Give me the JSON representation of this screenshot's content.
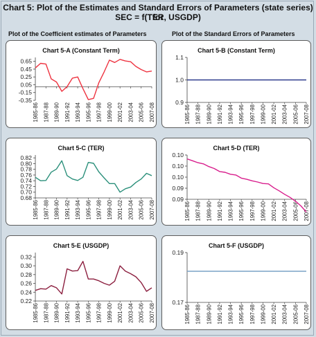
{
  "header": {
    "title_line1": "Chart 5: Plot of the Estimates and Standard Errors of Parameters (state series) for",
    "title_line2": "SEC = f(TER, USGDP)"
  },
  "columns": {
    "left": "Plot of the Coefficient estimates of Parameters",
    "right": "Plot of the Standard Errors of Parameters"
  },
  "chart_data": [
    {
      "id": "5-A",
      "type": "line",
      "title": "Chart 5-A (Constant Term)",
      "color": "#ee3340",
      "x_ticks": [
        "1985-86",
        "1987-88",
        "1989-90",
        "1991-92",
        "1993-94",
        "1995-96",
        "1997-98",
        "1999-00",
        "2001-02",
        "2003-04",
        "2005-06",
        "2007-08"
      ],
      "y_ticks": [
        "0.65",
        "0.45",
        "0.25",
        "0.05",
        "-0.15",
        "-0.35"
      ],
      "ylim": [
        -0.35,
        0.75
      ],
      "values": [
        0.48,
        0.6,
        0.58,
        0.2,
        0.12,
        -0.12,
        0.0,
        0.22,
        0.25,
        -0.05,
        -0.33,
        -0.3,
        0.1,
        0.38,
        0.68,
        0.62,
        0.7,
        0.66,
        0.64,
        0.52,
        0.44,
        0.38,
        0.4
      ]
    },
    {
      "id": "5-B",
      "type": "line",
      "title": "Chart 5-B (Constant Term)",
      "color": "#2d3a8c",
      "x_ticks": [
        "1985-86",
        "1987-88",
        "1989-90",
        "1991-92",
        "1993-94",
        "1995-96",
        "1997-98",
        "1999-00",
        "2001-02",
        "2003-04",
        "2005-06",
        "2007-08"
      ],
      "y_ticks": [
        "1.1",
        "1.0",
        "0.9"
      ],
      "ylim": [
        0.9,
        1.1
      ],
      "values": [
        1.0,
        1.0,
        1.0,
        1.0,
        1.0,
        1.0,
        1.0,
        1.0,
        1.0,
        1.0,
        1.0,
        1.0,
        1.0,
        1.0,
        1.0,
        1.0,
        1.0,
        1.0,
        1.0,
        1.0,
        1.0,
        1.0,
        1.0
      ]
    },
    {
      "id": "5-C",
      "type": "line",
      "title": "Chart 5-C (TER)",
      "color": "#2a8f7a",
      "x_ticks": [
        "1985-86",
        "1987-88",
        "1989-90",
        "1991-92",
        "1993-94",
        "1995-96",
        "1997-98",
        "1999-00",
        "2001-02",
        "2003-04",
        "2005-06",
        "2007-08"
      ],
      "y_ticks": [
        "0.82",
        "0.80",
        "0.78",
        "0.76",
        "0.74",
        "0.72",
        "0.70",
        "0.68"
      ],
      "ylim": [
        0.68,
        0.83
      ],
      "values": [
        0.752,
        0.74,
        0.741,
        0.77,
        0.781,
        0.81,
        0.758,
        0.746,
        0.741,
        0.752,
        0.804,
        0.801,
        0.771,
        0.75,
        0.73,
        0.73,
        0.7,
        0.712,
        0.718,
        0.734,
        0.746,
        0.766,
        0.758
      ]
    },
    {
      "id": "5-D",
      "type": "line",
      "title": "Chart 5-D (TER)",
      "color": "#d81d8c",
      "x_ticks": [
        "1985-86",
        "1987-88",
        "1989-90",
        "1991-92",
        "1993-94",
        "1995-96",
        "1997-98",
        "1999-00",
        "2001-02",
        "2003-04",
        "2005-06",
        "2007-08"
      ],
      "y_ticks": [
        "0.10",
        "0.10",
        "0.10",
        "0.09",
        "0.09"
      ],
      "ylim": [
        0.0895,
        0.101
      ],
      "values": [
        0.1,
        0.0995,
        0.099,
        0.0987,
        0.098,
        0.0975,
        0.0967,
        0.0965,
        0.096,
        0.0958,
        0.095,
        0.0947,
        0.0943,
        0.094,
        0.0936,
        0.0935,
        0.0925,
        0.0917,
        0.0908,
        0.09,
        0.089,
        0.0878,
        0.0862
      ]
    },
    {
      "id": "5-E",
      "type": "line",
      "title": "Chart 5-E (USGDP)",
      "color": "#8c1f3f",
      "x_ticks": [
        "1985-86",
        "1987-88",
        "1989-90",
        "1991-92",
        "1993-94",
        "1995-96",
        "1997-98",
        "1999-00",
        "2001-02",
        "2003-04",
        "2005-06",
        "2007-08"
      ],
      "y_ticks": [
        "0.32",
        "0.30",
        "0.28",
        "0.26",
        "0.24",
        "0.22"
      ],
      "ylim": [
        0.22,
        0.33
      ],
      "values": [
        0.244,
        0.248,
        0.247,
        0.255,
        0.25,
        0.236,
        0.293,
        0.288,
        0.289,
        0.31,
        0.27,
        0.27,
        0.266,
        0.26,
        0.256,
        0.265,
        0.3,
        0.288,
        0.282,
        0.275,
        0.262,
        0.242,
        0.25
      ]
    },
    {
      "id": "5-F",
      "type": "line",
      "title": "Chart 5-F (USGDP)",
      "color": "#7aa2c6",
      "x_ticks": [
        "1985-86",
        "1987-88",
        "1989-90",
        "1991-92",
        "1993-94",
        "1995-96",
        "1997-98",
        "1999-00",
        "2001-02",
        "2003-04",
        "2005-06",
        "2007-08"
      ],
      "y_ticks": [
        "0.19",
        "0.17"
      ],
      "ylim": [
        0.17,
        0.19
      ],
      "values": [
        0.1825,
        0.1825,
        0.1825,
        0.1825,
        0.1825,
        0.1825,
        0.1825,
        0.1825,
        0.1825,
        0.1825,
        0.1825,
        0.1825,
        0.1825,
        0.1825,
        0.1825,
        0.1825,
        0.1825,
        0.1825,
        0.1825,
        0.1825,
        0.1825,
        0.1825,
        0.1825
      ]
    }
  ]
}
